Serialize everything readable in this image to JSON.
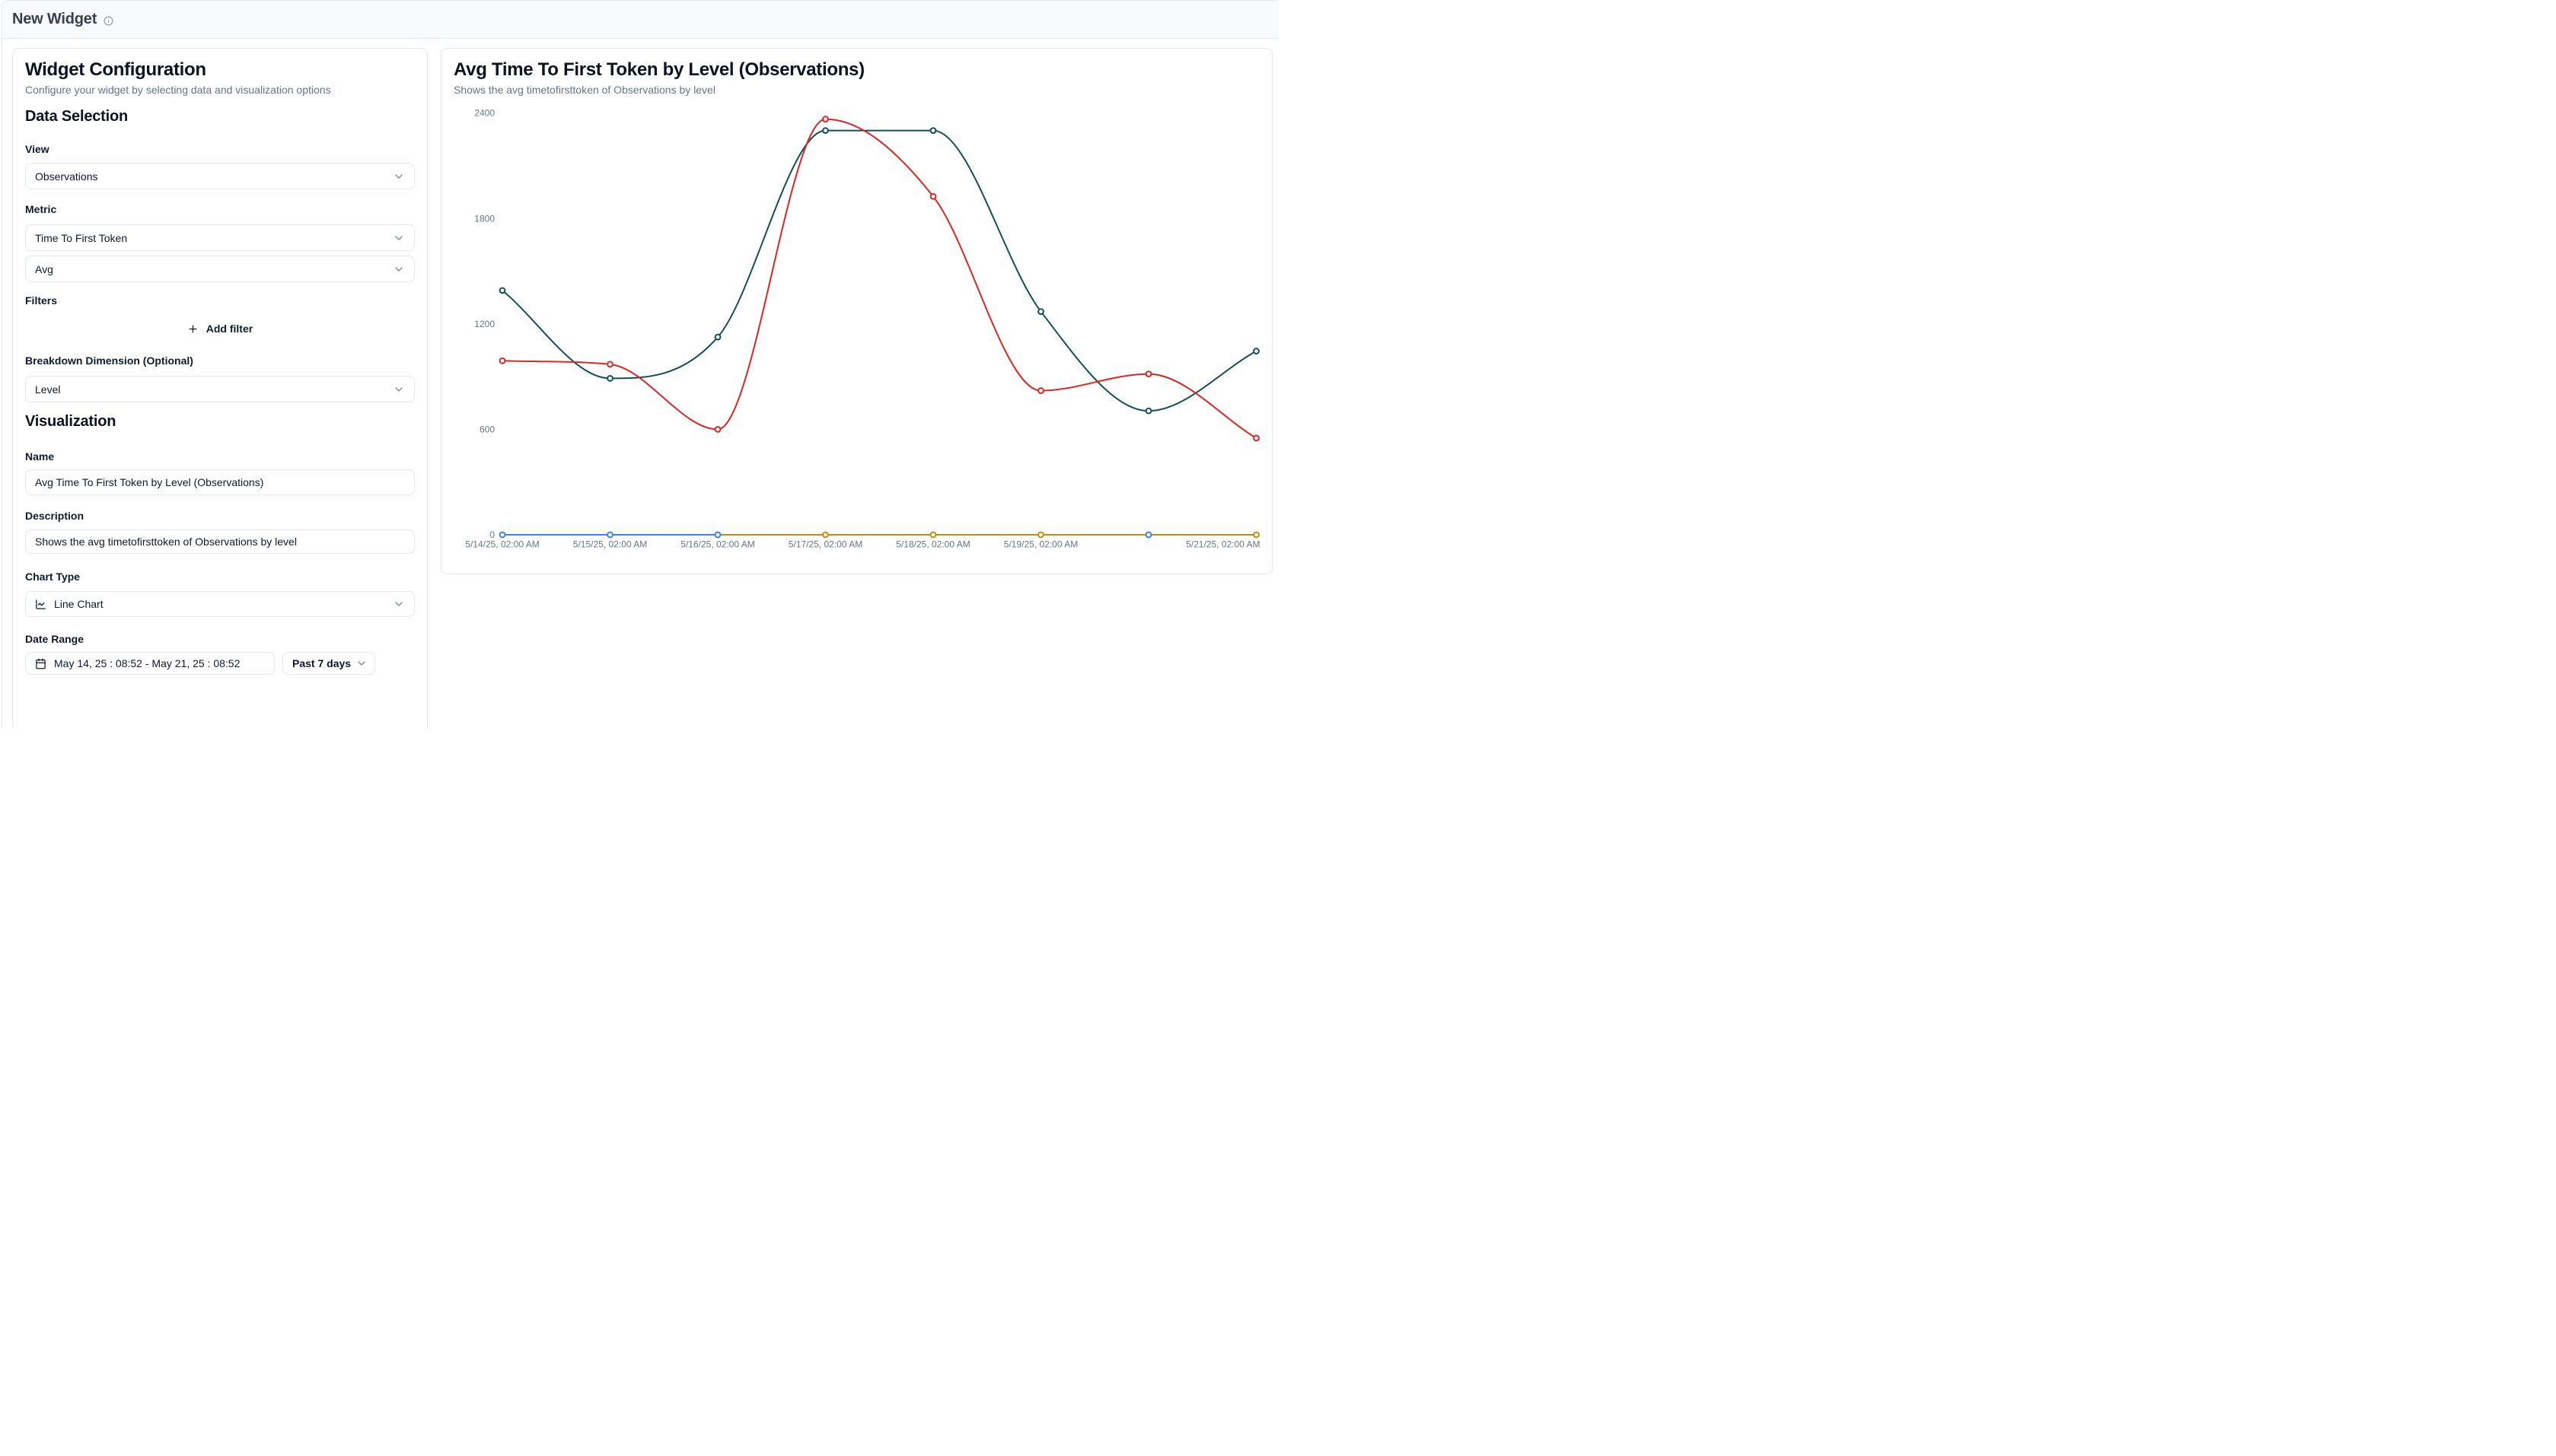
{
  "header": {
    "title": "New Widget"
  },
  "config_panel": {
    "title": "Widget Configuration",
    "subtitle": "Configure your widget by selecting data and visualization options",
    "data_selection": {
      "heading": "Data Selection",
      "view": {
        "label": "View",
        "value": "Observations"
      },
      "metric": {
        "label": "Metric",
        "value": "Time To First Token",
        "aggregation": "Avg"
      },
      "filters": {
        "label": "Filters",
        "add_button": "Add filter"
      },
      "breakdown": {
        "label": "Breakdown Dimension (Optional)",
        "value": "Level"
      }
    },
    "visualization": {
      "heading": "Visualization",
      "name": {
        "label": "Name",
        "value": "Avg Time To First Token by Level (Observations)"
      },
      "description": {
        "label": "Description",
        "value": "Shows the avg timetofirsttoken of Observations by level"
      },
      "chart_type": {
        "label": "Chart Type",
        "value": "Line Chart"
      },
      "date_range": {
        "label": "Date Range",
        "value": "May 14, 25 : 08:52 - May 21, 25 : 08:52",
        "preset": "Past 7 days"
      }
    }
  },
  "preview_panel": {
    "title": "Avg Time To First Token by Level (Observations)",
    "subtitle": "Shows the avg timetofirsttoken of Observations by level"
  },
  "chart_data": {
    "type": "line",
    "title": "Avg Time To First Token by Level (Observations)",
    "xlabel": "",
    "ylabel": "",
    "ylim": [
      0,
      2400
    ],
    "y_ticks": [
      0,
      600,
      1200,
      1800,
      2400
    ],
    "grid": false,
    "legend": false,
    "x_tick_labels": [
      "5/14/25, 02:00 AM",
      "5/15/25, 02:00 AM",
      "5/16/25, 02:00 AM",
      "5/17/25, 02:00 AM",
      "5/18/25, 02:00 AM",
      "5/19/25, 02:00 AM",
      "",
      "5/21/25, 02:00 AM"
    ],
    "series": [
      {
        "name": "series-amber",
        "color": "#ca8a04",
        "values": [
          null,
          null,
          0,
          0,
          0,
          0,
          0,
          0
        ]
      },
      {
        "name": "series-blue",
        "color": "#3b82f6",
        "values": [
          0,
          0,
          0,
          null,
          null,
          null,
          0,
          null
        ]
      },
      {
        "name": "series-teal",
        "color": "#144f52",
        "values": [
          1390,
          890,
          1125,
          2300,
          2300,
          1270,
          705,
          1045
        ]
      },
      {
        "name": "series-red",
        "color": "#dc2626",
        "values": [
          990,
          970,
          600,
          2365,
          1925,
          820,
          915,
          550
        ]
      }
    ]
  }
}
